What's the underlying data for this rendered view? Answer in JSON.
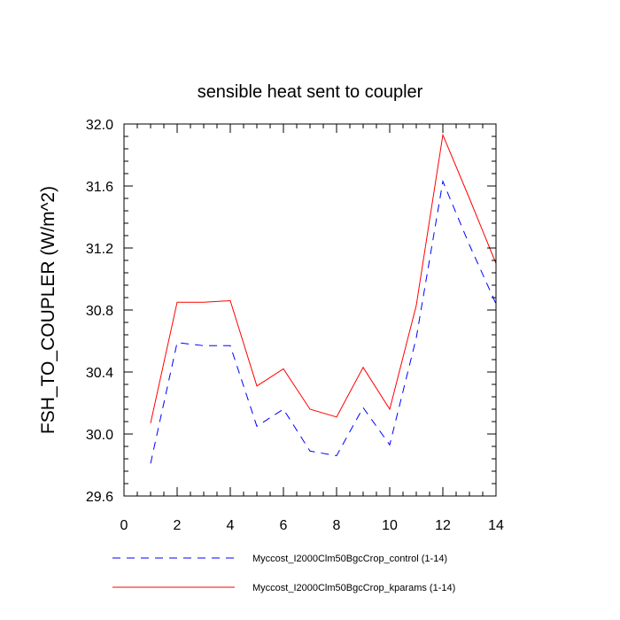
{
  "chart_data": {
    "type": "line",
    "title": "sensible heat sent to coupler",
    "xlabel": "",
    "ylabel": "FSH_TO_COUPLER  (W/m^2)",
    "xlim": [
      0,
      14
    ],
    "ylim": [
      29.6,
      32.0
    ],
    "xticks": [
      0,
      2,
      4,
      6,
      8,
      10,
      12,
      14
    ],
    "xtick_labels": [
      "0",
      "2",
      "4",
      "6",
      "8",
      "10",
      "12",
      "14"
    ],
    "yticks": [
      29.6,
      30.0,
      30.4,
      30.8,
      31.2,
      31.6,
      32.0
    ],
    "ytick_labels": [
      "29.6",
      "30.0",
      "30.4",
      "30.8",
      "31.2",
      "31.6",
      "32.0"
    ],
    "grid": false,
    "legend_position": "bottom",
    "x": [
      1,
      2,
      3,
      4,
      5,
      6,
      7,
      8,
      9,
      10,
      11,
      12,
      13,
      14
    ],
    "series": [
      {
        "name": "Myccost_I2000Clm50BgcCrop_control (1-14)",
        "color": "#0000ff",
        "dash": "dashed",
        "values": [
          29.81,
          30.59,
          30.57,
          30.57,
          30.05,
          30.16,
          29.89,
          29.86,
          30.17,
          29.93,
          30.62,
          31.63,
          31.22,
          30.84
        ]
      },
      {
        "name": "Myccost_I2000Clm50BgcCrop_kparams (1-14)",
        "color": "#ff0000",
        "dash": "solid",
        "values": [
          30.07,
          30.85,
          30.85,
          30.86,
          30.31,
          30.42,
          30.16,
          30.11,
          30.43,
          30.16,
          30.83,
          31.93,
          31.52,
          31.1
        ]
      }
    ]
  }
}
